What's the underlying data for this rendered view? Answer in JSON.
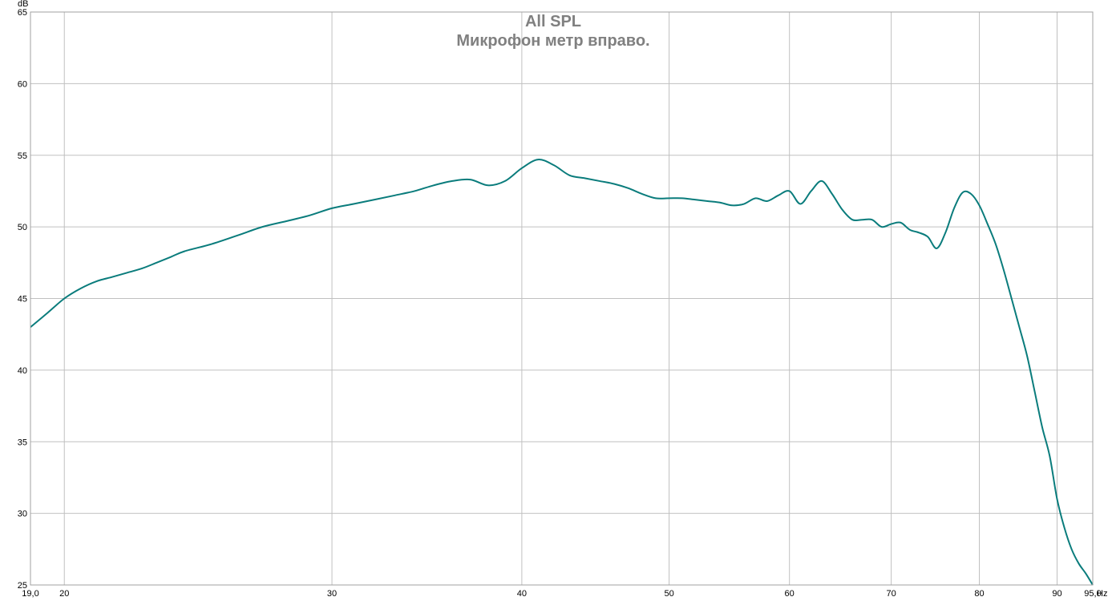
{
  "chart_data": {
    "type": "line",
    "title": "All SPL",
    "subtitle": "Микрофон метр вправо.",
    "ylabel": "dB",
    "xunit": "Hz",
    "x_scale": "log",
    "xlim": [
      19.0,
      95.0
    ],
    "ylim": [
      25,
      65
    ],
    "grid": true,
    "x_ticks": [
      {
        "value": 19.0,
        "label": "19,0"
      },
      {
        "value": 20,
        "label": "20"
      },
      {
        "value": 30,
        "label": "30"
      },
      {
        "value": 40,
        "label": "40"
      },
      {
        "value": 50,
        "label": "50"
      },
      {
        "value": 60,
        "label": "60"
      },
      {
        "value": 70,
        "label": "70"
      },
      {
        "value": 80,
        "label": "80"
      },
      {
        "value": 90,
        "label": "90"
      },
      {
        "value": 95.0,
        "label": "95,0"
      }
    ],
    "y_ticks": [
      {
        "value": 25,
        "label": "25"
      },
      {
        "value": 30,
        "label": "30"
      },
      {
        "value": 35,
        "label": "35"
      },
      {
        "value": 40,
        "label": "40"
      },
      {
        "value": 45,
        "label": "45"
      },
      {
        "value": 50,
        "label": "50"
      },
      {
        "value": 55,
        "label": "55"
      },
      {
        "value": 60,
        "label": "60"
      },
      {
        "value": 65,
        "label": "65"
      }
    ],
    "series": [
      {
        "color": "#0a7c7c",
        "points": [
          [
            19.0,
            43.0
          ],
          [
            19.5,
            44.0
          ],
          [
            20.0,
            45.0
          ],
          [
            20.5,
            45.7
          ],
          [
            21.0,
            46.2
          ],
          [
            21.5,
            46.5
          ],
          [
            22.0,
            46.8
          ],
          [
            22.5,
            47.1
          ],
          [
            23.0,
            47.5
          ],
          [
            23.5,
            47.9
          ],
          [
            24.0,
            48.3
          ],
          [
            25.0,
            48.8
          ],
          [
            26.0,
            49.4
          ],
          [
            27.0,
            50.0
          ],
          [
            28.0,
            50.4
          ],
          [
            29.0,
            50.8
          ],
          [
            30.0,
            51.3
          ],
          [
            31.0,
            51.6
          ],
          [
            32.0,
            51.9
          ],
          [
            33.0,
            52.2
          ],
          [
            34.0,
            52.5
          ],
          [
            35.0,
            52.9
          ],
          [
            36.0,
            53.2
          ],
          [
            37.0,
            53.3
          ],
          [
            38.0,
            52.9
          ],
          [
            39.0,
            53.2
          ],
          [
            40.0,
            54.1
          ],
          [
            41.0,
            54.7
          ],
          [
            42.0,
            54.3
          ],
          [
            43.0,
            53.6
          ],
          [
            44.0,
            53.4
          ],
          [
            45.0,
            53.2
          ],
          [
            46.0,
            53.0
          ],
          [
            47.0,
            52.7
          ],
          [
            48.0,
            52.3
          ],
          [
            49.0,
            52.0
          ],
          [
            50.0,
            52.0
          ],
          [
            51.0,
            52.0
          ],
          [
            52.0,
            51.9
          ],
          [
            53.0,
            51.8
          ],
          [
            54.0,
            51.7
          ],
          [
            55.0,
            51.5
          ],
          [
            56.0,
            51.6
          ],
          [
            57.0,
            52.0
          ],
          [
            58.0,
            51.8
          ],
          [
            59.0,
            52.2
          ],
          [
            60.0,
            52.5
          ],
          [
            61.0,
            51.6
          ],
          [
            62.0,
            52.5
          ],
          [
            63.0,
            53.2
          ],
          [
            64.0,
            52.3
          ],
          [
            65.0,
            51.2
          ],
          [
            66.0,
            50.5
          ],
          [
            67.0,
            50.5
          ],
          [
            68.0,
            50.5
          ],
          [
            69.0,
            50.0
          ],
          [
            70.0,
            50.2
          ],
          [
            71.0,
            50.3
          ],
          [
            72.0,
            49.8
          ],
          [
            73.0,
            49.6
          ],
          [
            74.0,
            49.3
          ],
          [
            75.0,
            48.5
          ],
          [
            76.0,
            49.6
          ],
          [
            77.0,
            51.3
          ],
          [
            78.0,
            52.4
          ],
          [
            79.0,
            52.3
          ],
          [
            80.0,
            51.5
          ],
          [
            81.0,
            50.2
          ],
          [
            82.0,
            48.8
          ],
          [
            83.0,
            47.0
          ],
          [
            84.0,
            45.0
          ],
          [
            85.0,
            43.0
          ],
          [
            86.0,
            41.0
          ],
          [
            87.0,
            38.5
          ],
          [
            88.0,
            36.0
          ],
          [
            89.0,
            34.0
          ],
          [
            90.0,
            31.0
          ],
          [
            91.0,
            29.0
          ],
          [
            92.0,
            27.5
          ],
          [
            93.0,
            26.5
          ],
          [
            94.0,
            25.8
          ],
          [
            95.0,
            25.0
          ]
        ]
      }
    ]
  }
}
